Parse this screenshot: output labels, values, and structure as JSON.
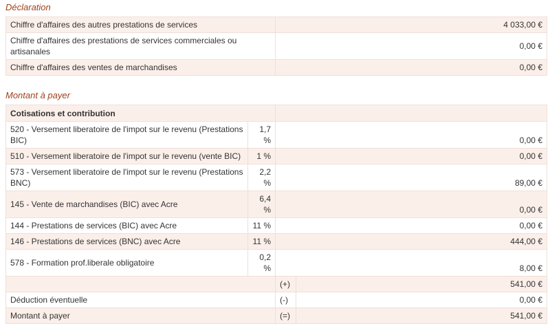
{
  "declaration": {
    "title": "Déclaration",
    "rows": [
      {
        "label": "Chiffre d'affaires des autres prestations de services",
        "value": "4 033,00 €"
      },
      {
        "label": "Chiffre d'affaires des prestations de services commerciales ou artisanales",
        "value": "0,00 €"
      },
      {
        "label": "Chiffre d'affaires des ventes de marchandises",
        "value": "0,00 €"
      }
    ]
  },
  "payment": {
    "title": "Montant à payer",
    "header": "Cotisations et contribution",
    "rows": [
      {
        "label": "520 - Versement liberatoire de l'impot sur le revenu (Prestations BIC)",
        "rate": "1,7 %",
        "value": "0,00 €"
      },
      {
        "label": "510 - Versement liberatoire de l'impot sur le revenu (vente BIC)",
        "rate": "1 %",
        "value": "0,00 €"
      },
      {
        "label": "573 - Versement liberatoire de l'impot sur le revenu (Prestations BNC)",
        "rate": "2,2 %",
        "value": "89,00 €"
      },
      {
        "label": "145 - Vente de marchandises (BIC) avec Acre",
        "rate": "6,4 %",
        "value": "0,00 €"
      },
      {
        "label": "144 - Prestations de services (BIC) avec Acre",
        "rate": "11 %",
        "value": "0,00 €"
      },
      {
        "label": "146 - Prestations de services (BNC) avec Acre",
        "rate": "11 %",
        "value": "444,00 €"
      },
      {
        "label": "578 - Formation prof.liberale obligatoire",
        "rate": "0,2 %",
        "value": "8,00 €"
      }
    ],
    "totals": [
      {
        "sign": "(+)",
        "value": "541,00 €"
      },
      {
        "label": "Déduction éventuelle",
        "sign": "(-)",
        "value": "0,00 €"
      },
      {
        "label": "Montant à payer",
        "sign": "(=)",
        "value": "541,00 €"
      }
    ]
  }
}
